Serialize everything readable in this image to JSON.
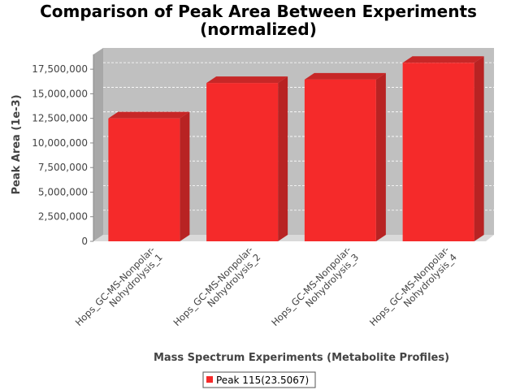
{
  "chart_data": {
    "type": "bar",
    "title": [
      "Comparison of Peak Area Between Experiments",
      "(normalized)"
    ],
    "xlabel": "Mass Spectrum Experiments (Metabolite Profiles)",
    "ylabel": "Peak Area (1e-3)",
    "categories": [
      [
        "Hops_GC-MS-Nonpolar-",
        "Nohydrolysis_1"
      ],
      [
        "Hops_GC-MS-Nonpolar-",
        "Nohydrolysis_2"
      ],
      [
        "Hops_GC-MS-Nonpolar-",
        "Nohydrolysis_3"
      ],
      [
        "Hops_GC-MS-Nonpolar-",
        "Nohydrolysis_4"
      ]
    ],
    "series": [
      {
        "name": "Peak 115(23.5067)",
        "values": [
          12500000,
          16100000,
          16450000,
          18150000
        ]
      }
    ],
    "ylim": [
      0,
      19000000
    ],
    "yticks": [
      0,
      2500000,
      5000000,
      7500000,
      10000000,
      12500000,
      15000000,
      17500000
    ],
    "ytick_labels": [
      "0",
      "2,500,000",
      "5,000,000",
      "7,500,000",
      "10,000,000",
      "12,500,000",
      "15,000,000",
      "17,500,000"
    ],
    "grid": true,
    "legend_position": "bottom",
    "colors": {
      "bar_front": "#f52a2a",
      "bar_side": "#b82323",
      "bar_top": "#c72727",
      "plot_back": "#c0c0c0",
      "plot_floor": "#d9d9d9"
    }
  }
}
